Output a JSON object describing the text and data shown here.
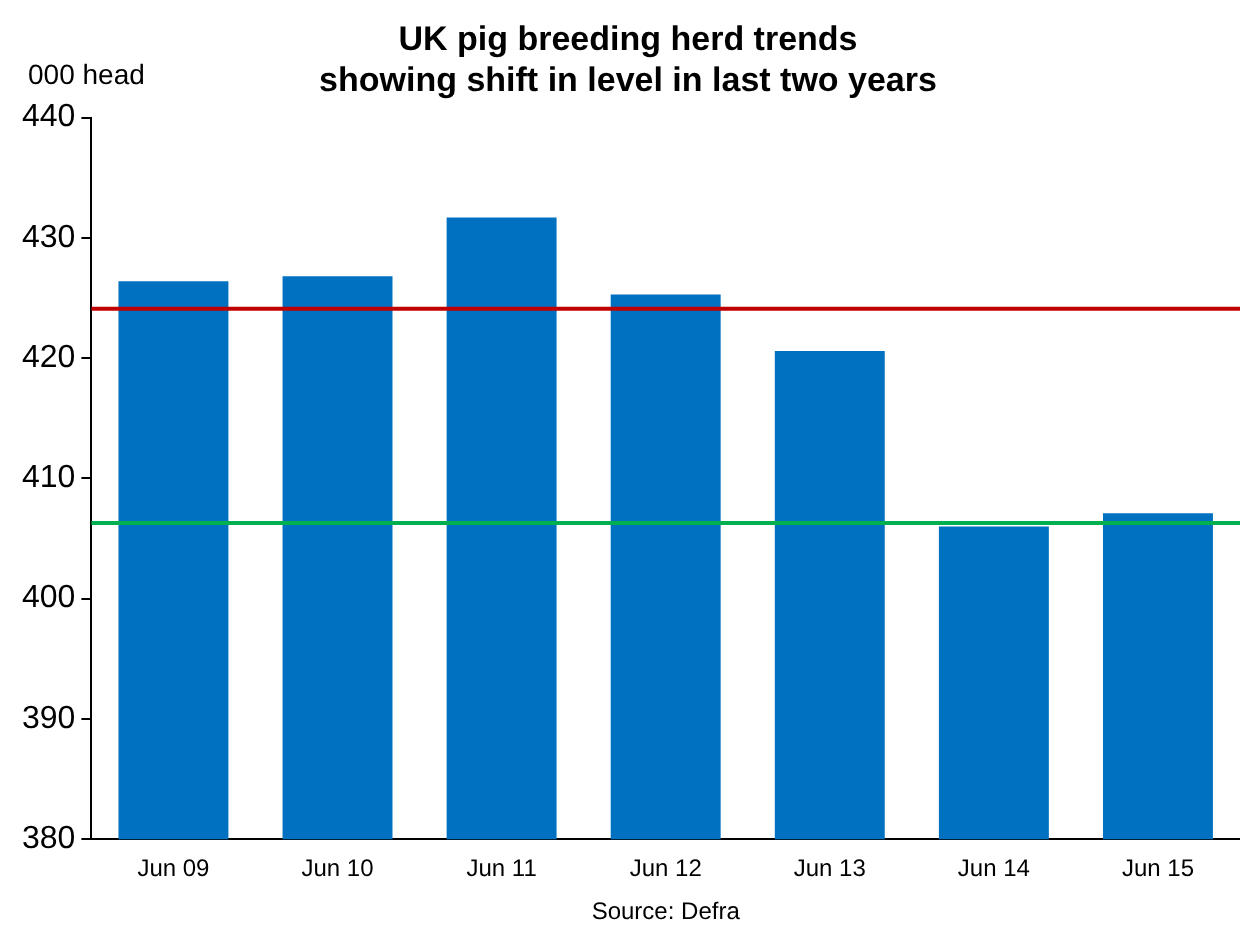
{
  "chart_data": {
    "type": "bar",
    "title": "UK pig breeding herd trends\nshowing shift in level in last two years",
    "ylabel": "000 head",
    "categories": [
      "Jun 09",
      "Jun 10",
      "Jun 11",
      "Jun 12",
      "Jun 13",
      "Jun 14",
      "Jun 15"
    ],
    "values": [
      426.4,
      426.8,
      431.7,
      425.3,
      420.6,
      406.0,
      407.1
    ],
    "color": "#0070c0",
    "ylim": [
      380,
      440
    ],
    "yticks": [
      380,
      390,
      400,
      410,
      420,
      430,
      440
    ],
    "grid": false,
    "legend": false,
    "ref_lines": [
      {
        "axis": "y",
        "value": 424.1,
        "color": "#c00000"
      },
      {
        "axis": "y",
        "value": 406.3,
        "color": "#00b050"
      }
    ],
    "annotations": [
      "Source: Defra"
    ]
  }
}
